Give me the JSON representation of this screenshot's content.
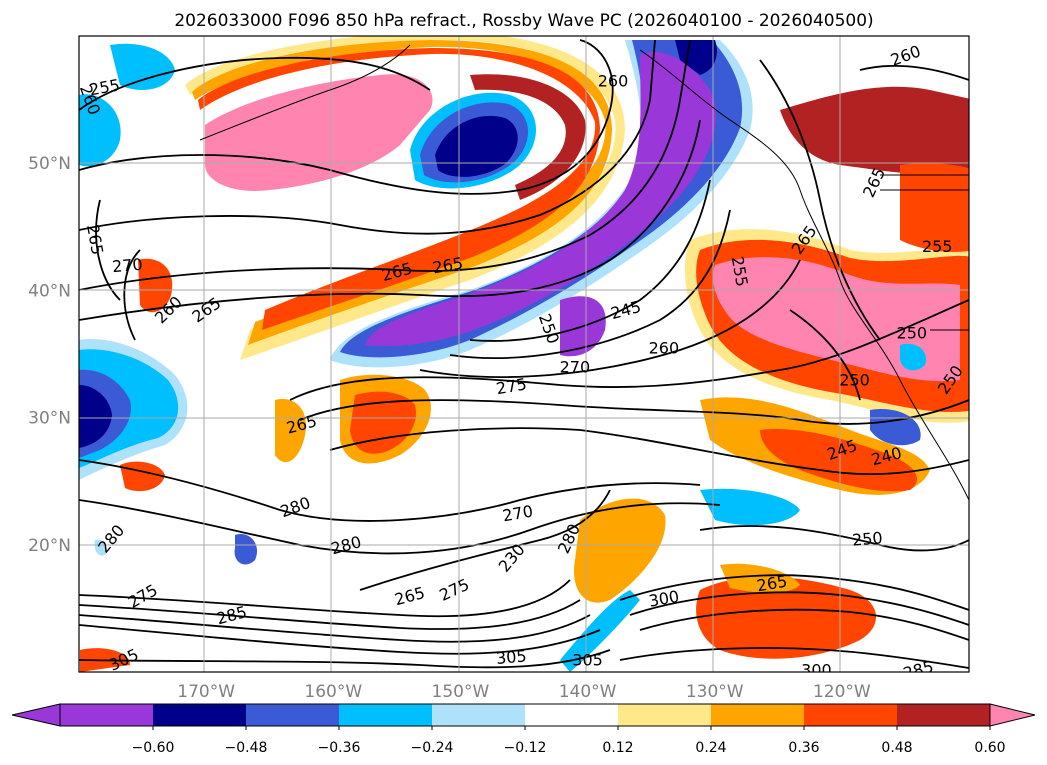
{
  "chart_data": {
    "type": "filled-contour-map",
    "title": "2026033000 F096 850 hPa refract., Rossby Wave PC (2026040100 - 2026040500)",
    "lon_range": [
      -180,
      -110
    ],
    "lat_range": [
      10,
      60
    ],
    "x_ticks": [
      {
        "lon": -170,
        "label": "170°W"
      },
      {
        "lon": -160,
        "label": "160°W"
      },
      {
        "lon": -150,
        "label": "150°W"
      },
      {
        "lon": -140,
        "label": "140°W"
      },
      {
        "lon": -130,
        "label": "130°W"
      },
      {
        "lon": -120,
        "label": "120°W"
      }
    ],
    "y_ticks": [
      {
        "lat": 20,
        "label": "20°N"
      },
      {
        "lat": 30,
        "label": "30°N"
      },
      {
        "lat": 40,
        "label": "40°N"
      },
      {
        "lat": 50,
        "label": "50°N"
      }
    ],
    "grid": true,
    "colorbar": {
      "ticks": [
        "−0.60",
        "−0.48",
        "−0.36",
        "−0.24",
        "−0.12",
        "0.12",
        "0.24",
        "0.36",
        "0.48",
        "0.60"
      ],
      "colors": [
        "#9a37d9",
        "#00008b",
        "#3b5bd6",
        "#00bfff",
        "#aee2fa",
        "#ffffff",
        "#ffe88a",
        "#ffa500",
        "#ff4500",
        "#b22222",
        "#ff85b0",
        "#ff85b0"
      ]
    },
    "contour_labels": [
      {
        "text": "255",
        "lon": -178,
        "lat": 56,
        "rot": -10
      },
      {
        "text": "260",
        "lon": -179.1,
        "lat": 55,
        "rot": 70
      },
      {
        "text": "265",
        "lon": -178.7,
        "lat": 44,
        "rot": 80
      },
      {
        "text": "270",
        "lon": -176.2,
        "lat": 42,
        "rot": -5
      },
      {
        "text": "260",
        "lon": -173,
        "lat": 38.5,
        "rot": -45
      },
      {
        "text": "265",
        "lon": -170,
        "lat": 38.5,
        "rot": -35
      },
      {
        "text": "265",
        "lon": -155,
        "lat": 41.5,
        "rot": -15
      },
      {
        "text": "265",
        "lon": -151,
        "lat": 42,
        "rot": -10
      },
      {
        "text": "250",
        "lon": -143,
        "lat": 37,
        "rot": 70
      },
      {
        "text": "245",
        "lon": -137,
        "lat": 38.5,
        "rot": -15
      },
      {
        "text": "260",
        "lon": -134,
        "lat": 35.5,
        "rot": 0
      },
      {
        "text": "255",
        "lon": -128,
        "lat": 41.5,
        "rot": 80
      },
      {
        "text": "265",
        "lon": -123,
        "lat": 44,
        "rot": -55
      },
      {
        "text": "265",
        "lon": -117.5,
        "lat": 48.5,
        "rot": -65
      },
      {
        "text": "255",
        "lon": -112.5,
        "lat": 43.5,
        "rot": 0
      },
      {
        "text": "250",
        "lon": -114.5,
        "lat": 36.7,
        "rot": 0
      },
      {
        "text": "250",
        "lon": -119,
        "lat": 33,
        "rot": 0
      },
      {
        "text": "250",
        "lon": -111.5,
        "lat": 33,
        "rot": -55
      },
      {
        "text": "260",
        "lon": -138,
        "lat": 56.5,
        "rot": 0
      },
      {
        "text": "260",
        "lon": -115,
        "lat": 58.5,
        "rot": -20
      },
      {
        "text": "275",
        "lon": -146,
        "lat": 32.5,
        "rot": -10
      },
      {
        "text": "270",
        "lon": -141,
        "lat": 34,
        "rot": 0
      },
      {
        "text": "265",
        "lon": -162.5,
        "lat": 29.5,
        "rot": -15
      },
      {
        "text": "245",
        "lon": -120,
        "lat": 27.5,
        "rot": -20
      },
      {
        "text": "240",
        "lon": -116.5,
        "lat": 27,
        "rot": -15
      },
      {
        "text": "280",
        "lon": -163,
        "lat": 23,
        "rot": -20
      },
      {
        "text": "280",
        "lon": -159,
        "lat": 20,
        "rot": -15
      },
      {
        "text": "270",
        "lon": -145.5,
        "lat": 22.5,
        "rot": -10
      },
      {
        "text": "280",
        "lon": -177.5,
        "lat": 20.5,
        "rot": -50
      },
      {
        "text": "275",
        "lon": -175,
        "lat": 16,
        "rot": -30
      },
      {
        "text": "285",
        "lon": -168,
        "lat": 14.5,
        "rot": -15
      },
      {
        "text": "265",
        "lon": -154,
        "lat": 16,
        "rot": -15
      },
      {
        "text": "275",
        "lon": -150.5,
        "lat": 16.5,
        "rot": -25
      },
      {
        "text": "280",
        "lon": -141.5,
        "lat": 20.5,
        "rot": -65
      },
      {
        "text": "250",
        "lon": -118,
        "lat": 20.5,
        "rot": -5
      },
      {
        "text": "265",
        "lon": -125.5,
        "lat": 17,
        "rot": -10
      },
      {
        "text": "300",
        "lon": -134,
        "lat": 15.8,
        "rot": -10
      },
      {
        "text": "305",
        "lon": -146,
        "lat": 11.2,
        "rot": -5
      },
      {
        "text": "305",
        "lon": -140,
        "lat": 11,
        "rot": 0
      },
      {
        "text": "305",
        "lon": -176.5,
        "lat": 11,
        "rot": -25
      },
      {
        "text": "300",
        "lon": -122,
        "lat": 10.2,
        "rot": 0
      },
      {
        "text": "285",
        "lon": -114,
        "lat": 10.2,
        "rot": -15
      },
      {
        "text": "230",
        "lon": -146,
        "lat": 19,
        "rot": -50
      }
    ]
  }
}
